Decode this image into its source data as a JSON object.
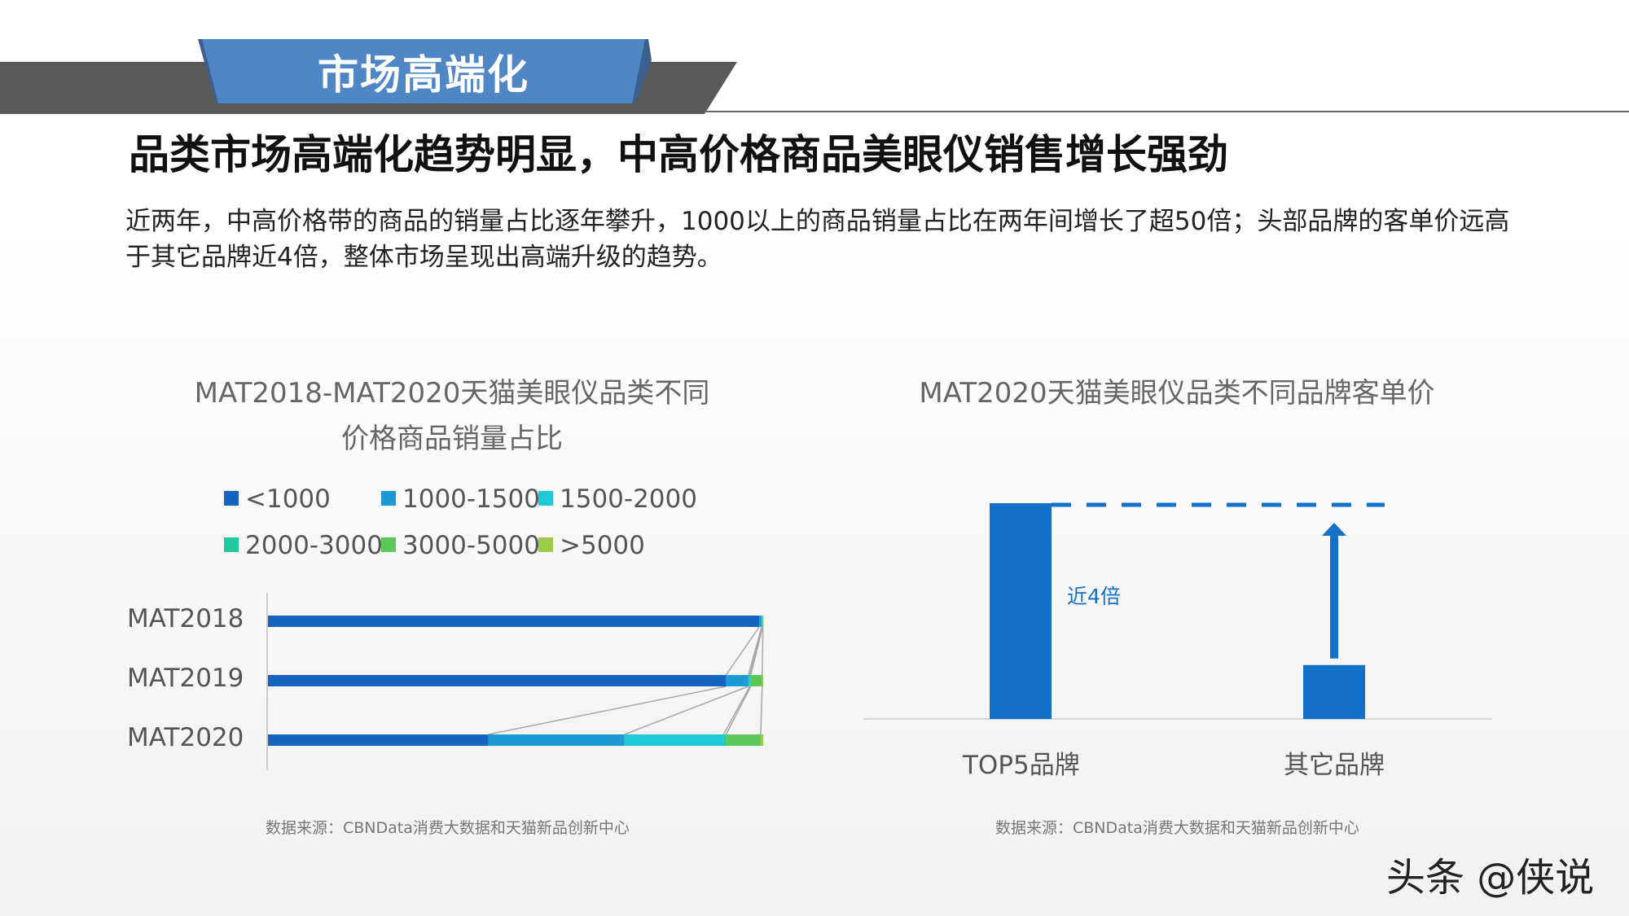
{
  "section_title": "市场高端化",
  "headline": "品类市场高端化趋势明显，中高价格商品美眼仪销售增长强劲",
  "description": "近两年，中高价格带的商品的销量占比逐年攀升，1000以上的商品销量占比在两年间增长了超50倍；头部品牌的客单价远高于其它品牌近4倍，整体市场呈现出高端升级的趋势。",
  "watermark": "头条 @侠说",
  "colors": {
    "header_bar": "#5a5a5a",
    "header_tab": "#4f86c6",
    "primary_blue": "#1470c8"
  },
  "chart_data": [
    {
      "type": "bar",
      "stacked": true,
      "orientation": "horizontal",
      "title_lines": [
        "MAT2018-MAT2020天猫美眼仪品类不同",
        "价格商品销量占比"
      ],
      "categories": [
        "MAT2018",
        "MAT2019",
        "MAT2020"
      ],
      "series": [
        {
          "name": "<1000",
          "color": "#1565c0",
          "values": [
            99.2,
            92.5,
            44.5
          ]
        },
        {
          "name": "1000-1500",
          "color": "#1d9ad6",
          "values": [
            0.5,
            4.5,
            27.5
          ]
        },
        {
          "name": "1500-2000",
          "color": "#1dc8d8",
          "values": [
            0.1,
            0.3,
            20.0
          ]
        },
        {
          "name": "2000-3000",
          "color": "#20c9a0",
          "values": [
            0.1,
            0.2,
            0.5
          ]
        },
        {
          "name": "3000-5000",
          "color": "#5cc85a",
          "values": [
            0.05,
            2.3,
            7.0
          ]
        },
        {
          "name": ">5000",
          "color": "#9ccc4a",
          "values": [
            0.05,
            0.2,
            0.5
          ]
        }
      ],
      "xlim": [
        0,
        100
      ],
      "series_lines": true,
      "legend_position": "top",
      "source": "数据来源：CBNData消费大数据和天猫新品创新中心"
    },
    {
      "type": "bar",
      "title": "MAT2020天猫美眼仪品类不同品牌客单价",
      "categories": [
        "TOP5品牌",
        "其它品牌"
      ],
      "values": [
        4,
        1
      ],
      "annotation": "近4倍",
      "color": "#1470c8",
      "source": "数据来源：CBNData消费大数据和天猫新品创新中心"
    }
  ]
}
